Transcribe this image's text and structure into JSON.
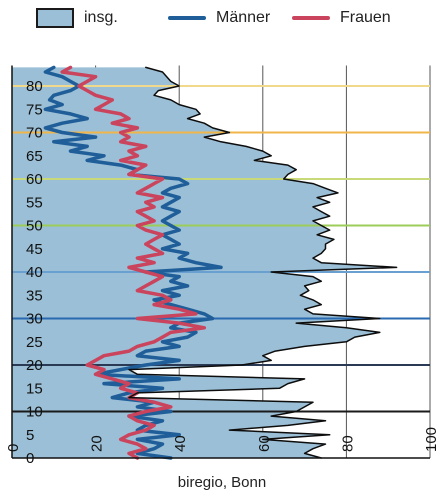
{
  "colors": {
    "fill": "#9bbfd6",
    "total_line": "#0d0d0d",
    "men": "#1f5e99",
    "women": "#c9445c",
    "background": "#ffffff"
  },
  "legend": [
    {
      "key": "total",
      "label": "insg.",
      "kind": "box",
      "color": "#9bbfd6"
    },
    {
      "key": "men",
      "label": "Männer",
      "kind": "line",
      "color": "#1f5e99"
    },
    {
      "key": "women",
      "label": "Frauen",
      "kind": "line",
      "color": "#c9445c"
    }
  ],
  "source": "biregio, Bonn",
  "chart_data": {
    "type": "area",
    "orientation": "horizontal",
    "title": "",
    "xlabel": "",
    "ylabel": "",
    "xlim": [
      0,
      100
    ],
    "ylim": [
      0,
      85
    ],
    "x_ticks": [
      0,
      20,
      40,
      60,
      80,
      100
    ],
    "y_ticks": [
      0,
      5,
      10,
      15,
      20,
      25,
      30,
      35,
      40,
      45,
      50,
      55,
      60,
      65,
      70,
      75,
      80
    ],
    "grid_x": true,
    "grid_y": false,
    "legend_position": "top",
    "reference_lines": [
      {
        "age": 80,
        "color": "#f0d98a"
      },
      {
        "age": 70,
        "color": "#f0b64a"
      },
      {
        "age": 60,
        "color": "#c8d97a"
      },
      {
        "age": 50,
        "color": "#9ccc5a"
      },
      {
        "age": 40,
        "color": "#6aa0d0"
      },
      {
        "age": 30,
        "color": "#2a6ab0"
      },
      {
        "age": 20,
        "color": "#2a3a55"
      },
      {
        "age": 10,
        "color": "#1a1a1a"
      },
      {
        "age": 0,
        "color": "#1a1a1a"
      }
    ],
    "ages": [
      84,
      83,
      82,
      81,
      80,
      79,
      78,
      77,
      76,
      75,
      74,
      73,
      72,
      71,
      70,
      69,
      68,
      67,
      66,
      65,
      64,
      63,
      62,
      61,
      60,
      59,
      58,
      57,
      56,
      55,
      54,
      53,
      52,
      51,
      50,
      49,
      48,
      47,
      46,
      45,
      44,
      43,
      42,
      41,
      40,
      39,
      38,
      37,
      36,
      35,
      34,
      33,
      32,
      31,
      30,
      29,
      28,
      27,
      26,
      25,
      24,
      23,
      22,
      21,
      20,
      19,
      18,
      17,
      16,
      15,
      14,
      13,
      12,
      11,
      10,
      9,
      8,
      7,
      6,
      5,
      4,
      3,
      2,
      1,
      0
    ],
    "series": [
      {
        "name": "insg.",
        "key": "total",
        "values": [
          32,
          36,
          37,
          38,
          40,
          35,
          34,
          38,
          40,
          44,
          45,
          42,
          46,
          48,
          52,
          46,
          50,
          56,
          60,
          62,
          58,
          66,
          68,
          66,
          65,
          72,
          75,
          78,
          73,
          76,
          72,
          74,
          76,
          72,
          74,
          76,
          73,
          77,
          75,
          75,
          74,
          72,
          74,
          92,
          62,
          72,
          74,
          70,
          71,
          69,
          72,
          74,
          70,
          72,
          88,
          68,
          80,
          88,
          82,
          80,
          70,
          63,
          60,
          62,
          55,
          28,
          30,
          70,
          66,
          64,
          30,
          28,
          72,
          70,
          68,
          62,
          75,
          66,
          52,
          76,
          60,
          75,
          72,
          70,
          74
        ]
      },
      {
        "name": "Männer",
        "key": "men",
        "values": [
          10,
          8,
          12,
          14,
          16,
          14,
          10,
          9,
          12,
          8,
          14,
          18,
          12,
          8,
          12,
          20,
          10,
          18,
          14,
          22,
          18,
          26,
          30,
          28,
          40,
          42,
          38,
          36,
          40,
          38,
          36,
          40,
          38,
          36,
          38,
          40,
          36,
          38,
          40,
          36,
          42,
          40,
          44,
          50,
          32,
          40,
          38,
          42,
          36,
          40,
          34,
          38,
          42,
          46,
          48,
          40,
          38,
          44,
          42,
          36,
          40,
          32,
          30,
          40,
          32,
          26,
          20,
          40,
          22,
          36,
          28,
          24,
          34,
          30,
          38,
          28,
          36,
          32,
          30,
          40,
          30,
          36,
          34,
          30,
          38
        ]
      },
      {
        "name": "Frauen",
        "key": "women",
        "values": [
          14,
          12,
          20,
          18,
          16,
          18,
          20,
          24,
          22,
          20,
          26,
          28,
          24,
          30,
          26,
          28,
          26,
          32,
          28,
          30,
          26,
          32,
          30,
          28,
          36,
          34,
          32,
          30,
          36,
          32,
          34,
          30,
          32,
          34,
          30,
          32,
          36,
          34,
          32,
          34,
          36,
          30,
          34,
          28,
          32,
          36,
          34,
          32,
          30,
          36,
          38,
          34,
          40,
          44,
          30,
          40,
          46,
          38,
          36,
          34,
          30,
          28,
          22,
          20,
          18,
          22,
          20,
          24,
          28,
          26,
          30,
          28,
          34,
          38,
          32,
          28,
          30,
          34,
          32,
          28,
          26,
          30,
          32,
          28,
          30
        ]
      }
    ]
  }
}
